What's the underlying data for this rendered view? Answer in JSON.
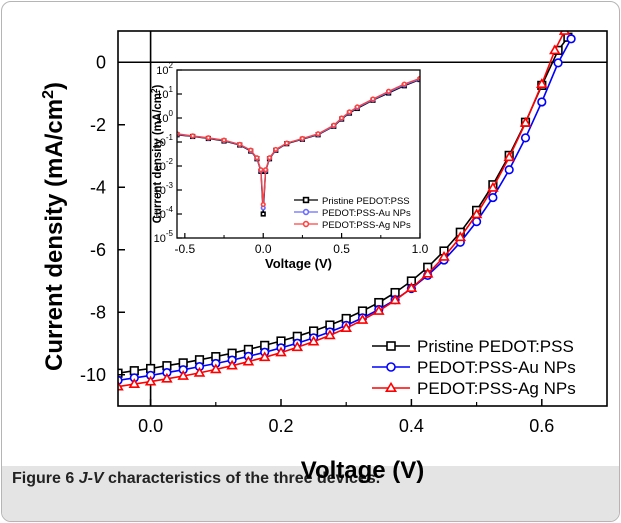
{
  "caption": {
    "figure_label": "Figure 6",
    "jv": "J-V",
    "text": " characteristics of the three devices."
  },
  "chart_data": [
    {
      "type": "line",
      "xlabel": "Voltage (V)",
      "ylabel": "Current density (mA/cm2)",
      "xlim": [
        -0.05,
        0.7
      ],
      "ylim": [
        -11,
        1
      ],
      "xticks": [
        0.0,
        0.2,
        0.4,
        0.6
      ],
      "xtick_labels": [
        "0.0",
        "0.2",
        "0.4",
        "0.6"
      ],
      "yticks": [
        0,
        -2,
        -4,
        -6,
        -8,
        -10
      ],
      "ytick_labels": [
        "0",
        "-2",
        "-4",
        "-6",
        "-8",
        "-10"
      ],
      "legend_position": "bottom-right",
      "series": [
        {
          "name": "Pristine PEDOT:PSS",
          "color": "#000000",
          "marker": "square",
          "x": [
            -0.05,
            -0.025,
            0.0,
            0.025,
            0.05,
            0.075,
            0.1,
            0.125,
            0.15,
            0.175,
            0.2,
            0.225,
            0.25,
            0.275,
            0.3,
            0.325,
            0.35,
            0.375,
            0.4,
            0.425,
            0.45,
            0.475,
            0.5,
            0.525,
            0.55,
            0.575,
            0.6,
            0.625,
            0.64
          ],
          "y": [
            -9.95,
            -9.87,
            -9.8,
            -9.71,
            -9.62,
            -9.52,
            -9.42,
            -9.31,
            -9.19,
            -9.06,
            -8.92,
            -8.77,
            -8.6,
            -8.41,
            -8.2,
            -7.96,
            -7.69,
            -7.37,
            -7.0,
            -6.56,
            -6.04,
            -5.44,
            -4.74,
            -3.92,
            -2.98,
            -1.92,
            -0.74,
            0.38,
            0.8
          ]
        },
        {
          "name": "PEDOT:PSS-Au NPs",
          "color": "#0000ff",
          "marker": "circle",
          "x": [
            -0.05,
            -0.025,
            0.0,
            0.025,
            0.05,
            0.075,
            0.1,
            0.125,
            0.15,
            0.175,
            0.2,
            0.225,
            0.25,
            0.275,
            0.3,
            0.325,
            0.35,
            0.375,
            0.4,
            0.425,
            0.45,
            0.475,
            0.5,
            0.525,
            0.55,
            0.575,
            0.6,
            0.625,
            0.645
          ],
          "y": [
            -10.18,
            -10.1,
            -10.02,
            -9.93,
            -9.84,
            -9.74,
            -9.64,
            -9.53,
            -9.41,
            -9.28,
            -9.14,
            -8.99,
            -8.82,
            -8.63,
            -8.42,
            -8.18,
            -7.91,
            -7.6,
            -7.24,
            -6.82,
            -6.33,
            -5.76,
            -5.1,
            -4.33,
            -3.44,
            -2.42,
            -1.27,
            -0.02,
            0.75
          ]
        },
        {
          "name": "PEDOT:PSS-Ag NPs",
          "color": "#ff0000",
          "marker": "triangle",
          "x": [
            -0.05,
            -0.025,
            0.0,
            0.025,
            0.05,
            0.075,
            0.1,
            0.125,
            0.15,
            0.175,
            0.2,
            0.225,
            0.25,
            0.275,
            0.3,
            0.325,
            0.35,
            0.375,
            0.4,
            0.425,
            0.45,
            0.475,
            0.5,
            0.525,
            0.55,
            0.575,
            0.6,
            0.62,
            0.635
          ],
          "y": [
            -10.38,
            -10.3,
            -10.22,
            -10.13,
            -10.04,
            -9.94,
            -9.83,
            -9.71,
            -9.58,
            -9.44,
            -9.29,
            -9.12,
            -8.94,
            -8.74,
            -8.51,
            -8.25,
            -7.96,
            -7.62,
            -7.23,
            -6.77,
            -6.23,
            -5.6,
            -4.87,
            -4.02,
            -3.04,
            -1.94,
            -0.7,
            0.38,
            1.0
          ]
        }
      ]
    },
    {
      "type": "line",
      "scale": "log-y",
      "xlabel": "Voltage (V)",
      "ylabel": "Current density (mA/cm2)",
      "xlim": [
        -0.55,
        1.0
      ],
      "ylim": [
        1e-05,
        100
      ],
      "xticks": [
        -0.5,
        0.0,
        0.5,
        1.0
      ],
      "xtick_labels": [
        "-0.5",
        "0.0",
        "0.5",
        "1.0"
      ],
      "yticks": [
        100,
        10,
        1,
        0.1,
        0.01,
        0.001,
        0.0001,
        1e-05
      ],
      "ytick_labels": [
        {
          "base": "10",
          "exp": "2"
        },
        {
          "base": "10",
          "exp": "1"
        },
        {
          "base": "10",
          "exp": "0"
        },
        {
          "base": "10",
          "exp": "-1"
        },
        {
          "base": "10",
          "exp": "-2"
        },
        {
          "base": "10",
          "exp": "-3"
        },
        {
          "base": "10",
          "exp": "-4"
        },
        {
          "base": "10",
          "exp": "-5"
        }
      ],
      "legend_position": "bottom-right",
      "series": [
        {
          "name": "Pristine PEDOT:PSS",
          "color": "#000000",
          "marker": "square",
          "x": [
            -0.55,
            -0.45,
            -0.35,
            -0.25,
            -0.15,
            -0.08,
            -0.04,
            -0.015,
            0.0,
            0.015,
            0.04,
            0.08,
            0.15,
            0.25,
            0.35,
            0.45,
            0.5,
            0.55,
            0.6,
            0.7,
            0.8,
            0.9,
            1.0
          ],
          "y": [
            0.2,
            0.17,
            0.14,
            0.11,
            0.075,
            0.042,
            0.02,
            0.006,
            0.0001,
            0.006,
            0.02,
            0.045,
            0.085,
            0.13,
            0.2,
            0.45,
            0.9,
            1.6,
            2.5,
            5.5,
            11,
            22,
            40
          ]
        },
        {
          "name": "PEDOT:PSS-Au NPs",
          "color": "#6a6aff",
          "marker": "circle",
          "x": [
            -0.55,
            -0.45,
            -0.35,
            -0.25,
            -0.15,
            -0.08,
            -0.04,
            -0.015,
            0.0,
            0.015,
            0.04,
            0.08,
            0.15,
            0.25,
            0.35,
            0.45,
            0.5,
            0.55,
            0.6,
            0.7,
            0.8,
            0.9,
            1.0
          ],
          "y": [
            0.21,
            0.175,
            0.145,
            0.115,
            0.078,
            0.044,
            0.021,
            0.0065,
            0.00018,
            0.0065,
            0.021,
            0.047,
            0.088,
            0.135,
            0.21,
            0.47,
            0.95,
            1.7,
            2.7,
            5.8,
            12,
            24,
            42
          ]
        },
        {
          "name": "PEDOT:PSS-Ag NPs",
          "color": "#ff4040",
          "marker": "circle",
          "x": [
            -0.55,
            -0.45,
            -0.35,
            -0.25,
            -0.15,
            -0.08,
            -0.04,
            -0.015,
            0.0,
            0.015,
            0.04,
            0.08,
            0.15,
            0.25,
            0.35,
            0.45,
            0.5,
            0.55,
            0.6,
            0.7,
            0.8,
            0.9,
            1.0
          ],
          "y": [
            0.22,
            0.18,
            0.15,
            0.12,
            0.08,
            0.046,
            0.022,
            0.007,
            0.00025,
            0.007,
            0.022,
            0.049,
            0.09,
            0.14,
            0.22,
            0.5,
            1.0,
            1.8,
            2.9,
            6.2,
            13,
            26,
            45
          ]
        }
      ]
    }
  ]
}
